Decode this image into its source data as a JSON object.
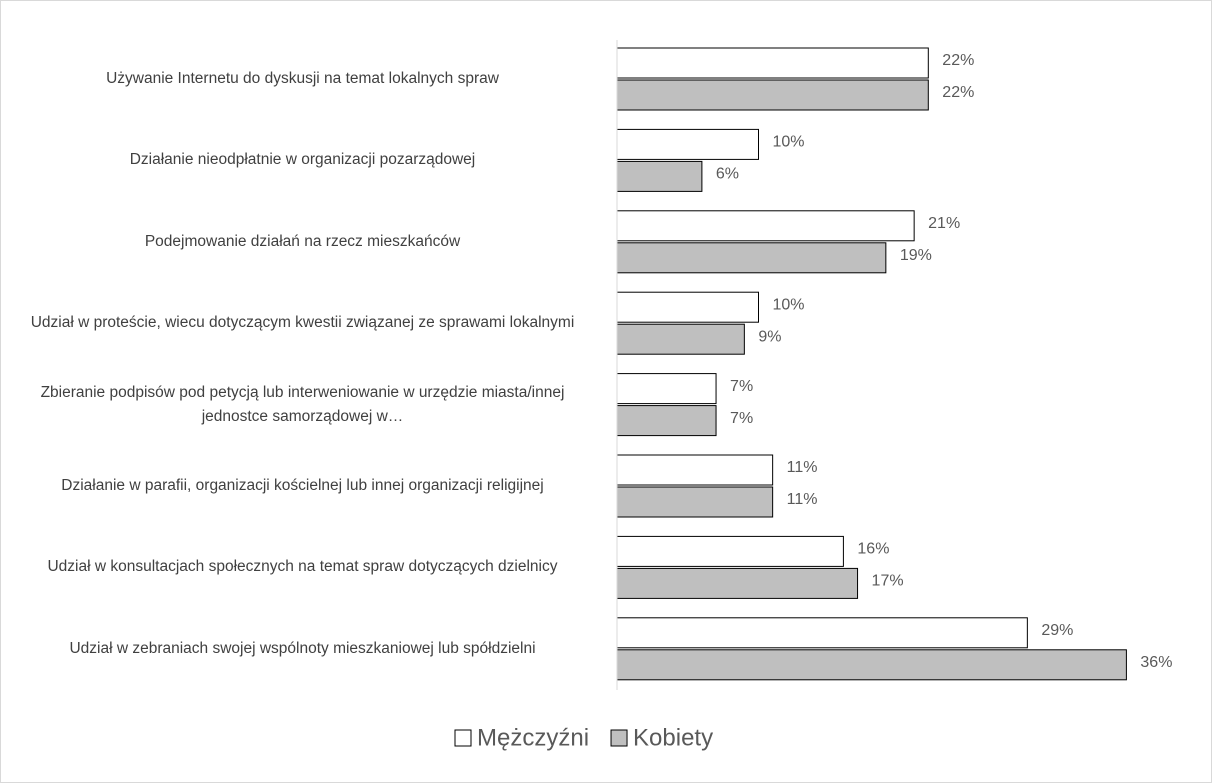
{
  "chart_data": {
    "type": "barh",
    "categories": [
      "Używanie Internetu do dyskusji na temat lokalnych spraw",
      "Działanie nieodpłatnie w organizacji pozarządowej",
      "Podejmowanie działań na rzecz mieszkańców",
      "Udział w proteście, wiecu dotyczącym kwestii związanej ze sprawami lokalnymi",
      "Zbieranie podpisów pod petycją lub interweniowanie w urzędzie miasta/innej jednostce samorządowej w…",
      "Działanie w parafii, organizacji kościelnej lub innej organizacji religijnej",
      "Udział w konsultacjach społecznych na temat spraw dotyczących dzielnicy",
      "Udział w zebraniach swojej wspólnoty mieszkaniowej lub spółdzielni"
    ],
    "series": [
      {
        "name": "Mężczyźni",
        "color": "#ffffff",
        "values": [
          22,
          10,
          21,
          10,
          7,
          11,
          16,
          29
        ],
        "value_labels": [
          "22%",
          "10%",
          "21%",
          "10%",
          "7%",
          "11%",
          "16%",
          "29%"
        ]
      },
      {
        "name": "Kobiety",
        "color": "#bfbfbf",
        "values": [
          22,
          6,
          19,
          9,
          7,
          11,
          17,
          36
        ],
        "value_labels": [
          "22%",
          "6%",
          "19%",
          "9%",
          "7%",
          "11%",
          "17%",
          "36%"
        ]
      }
    ],
    "xlim": [
      0,
      40
    ],
    "legend": "bottom"
  }
}
